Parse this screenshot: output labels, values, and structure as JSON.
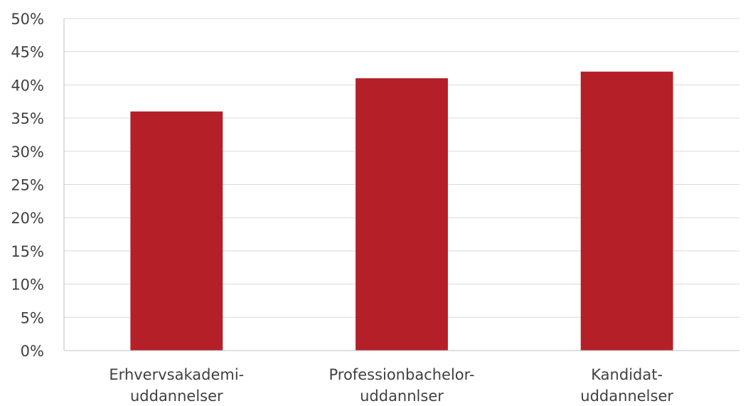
{
  "chart_data": {
    "type": "bar",
    "title": "",
    "xlabel": "",
    "ylabel": "",
    "categories": [
      [
        "Erhvervsakademi-",
        "uddannelser"
      ],
      [
        "Professionbachelor-",
        "uddannlser"
      ],
      [
        "Kandidat-",
        "uddannelser"
      ]
    ],
    "values": [
      36,
      41,
      42
    ],
    "ylim": [
      0,
      50
    ],
    "y_ticks": [
      0,
      5,
      10,
      15,
      20,
      25,
      30,
      35,
      40,
      45,
      50
    ],
    "y_tick_labels": [
      "0%",
      "5%",
      "10%",
      "15%",
      "20%",
      "25%",
      "30%",
      "35%",
      "40%",
      "45%",
      "50%"
    ],
    "grid": true,
    "legend": "none",
    "colors": {
      "bar": "#b51f28",
      "grid": "#d9d9d9",
      "text": "#404040"
    }
  }
}
